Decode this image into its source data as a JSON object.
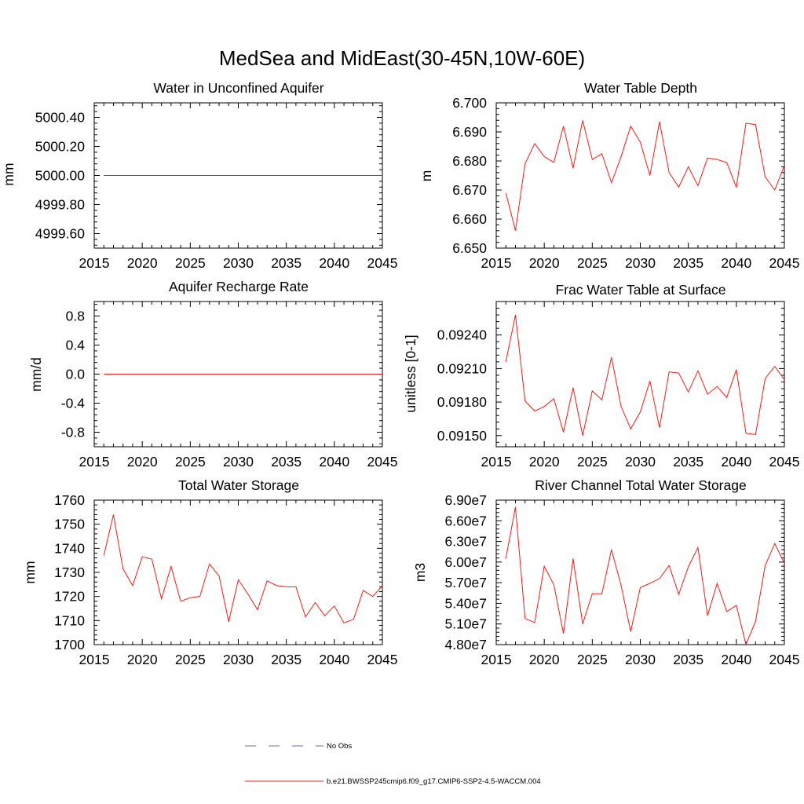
{
  "figure": {
    "title": "MedSea and MidEast(30-45N,10W-60E)",
    "legend": [
      {
        "label": "No Obs",
        "color": "#6a6ab0",
        "style": "dashed"
      },
      {
        "label": "b.e21.BWSSP245cmip6.f09_g17.CMIP6-SSP2-4.5-WACCM.004",
        "color": "#e8201a",
        "style": "solid"
      }
    ]
  },
  "chart_data": [
    {
      "id": "unconfined",
      "type": "line",
      "title": "Water in Unconfined Aquifer",
      "ylabel": "mm",
      "xlabel": "",
      "xlim": [
        2015,
        2045
      ],
      "ylim": [
        4999.5,
        5000.5
      ],
      "xticks": [
        2015,
        2020,
        2025,
        2030,
        2035,
        2040,
        2045
      ],
      "yticks": [
        4999.6,
        4999.8,
        5000.0,
        5000.2,
        5000.4
      ],
      "yticklabels": [
        "4999.60",
        "4999.80",
        "5000.00",
        "5000.20",
        "5000.40"
      ],
      "x": [
        2016,
        2017,
        2018,
        2019,
        2020,
        2021,
        2022,
        2023,
        2024,
        2025,
        2026,
        2027,
        2028,
        2029,
        2030,
        2031,
        2032,
        2033,
        2034,
        2035,
        2036,
        2037,
        2038,
        2039,
        2040,
        2041,
        2042,
        2043,
        2044,
        2045
      ],
      "series": [
        {
          "name": "b.e21.BWSSP245cmip6.f09_g17.CMIP6-SSP2-4.5-WACCM.004",
          "values": [
            5000.0,
            5000.0,
            5000.0,
            5000.0,
            5000.0,
            5000.0,
            5000.0,
            5000.0,
            5000.0,
            5000.0,
            5000.0,
            5000.0,
            5000.0,
            5000.0,
            5000.0,
            5000.0,
            5000.0,
            5000.0,
            5000.0,
            5000.0,
            5000.0,
            5000.0,
            5000.0,
            5000.0,
            5000.0,
            5000.0,
            5000.0,
            5000.0,
            5000.0,
            5000.0
          ]
        }
      ]
    },
    {
      "id": "wtd",
      "type": "line",
      "title": "Water Table Depth",
      "ylabel": "m",
      "xlabel": "",
      "xlim": [
        2015,
        2045
      ],
      "ylim": [
        6.65,
        6.7
      ],
      "xticks": [
        2015,
        2020,
        2025,
        2030,
        2035,
        2040,
        2045
      ],
      "yticks": [
        6.65,
        6.66,
        6.67,
        6.68,
        6.69,
        6.7
      ],
      "yticklabels": [
        "6.650",
        "6.660",
        "6.670",
        "6.680",
        "6.690",
        "6.700"
      ],
      "x": [
        2016,
        2017,
        2018,
        2019,
        2020,
        2021,
        2022,
        2023,
        2024,
        2025,
        2026,
        2027,
        2028,
        2029,
        2030,
        2031,
        2032,
        2033,
        2034,
        2035,
        2036,
        2037,
        2038,
        2039,
        2040,
        2041,
        2042,
        2043,
        2044,
        2045
      ],
      "series": [
        {
          "name": "b.e21.BWSSP245cmip6.f09_g17.CMIP6-SSP2-4.5-WACCM.004",
          "values": [
            6.669,
            6.656,
            6.679,
            6.686,
            6.6815,
            6.6795,
            6.692,
            6.6775,
            6.694,
            6.6805,
            6.6825,
            6.6725,
            6.6815,
            6.692,
            6.6865,
            6.675,
            6.6935,
            6.676,
            6.671,
            6.678,
            6.6715,
            6.681,
            6.6805,
            6.6795,
            6.671,
            6.693,
            6.6925,
            6.6745,
            6.67,
            6.6785
          ]
        }
      ]
    },
    {
      "id": "recharge",
      "type": "line",
      "title": "Aquifer Recharge Rate",
      "ylabel": "mm/d",
      "xlabel": "",
      "xlim": [
        2015,
        2045
      ],
      "ylim": [
        -1.0,
        1.0
      ],
      "xticks": [
        2015,
        2020,
        2025,
        2030,
        2035,
        2040,
        2045
      ],
      "yticks": [
        -0.8,
        -0.4,
        0.0,
        0.4,
        0.8
      ],
      "yticklabels": [
        "-0.8",
        "-0.4",
        "0.0",
        "0.4",
        "0.8"
      ],
      "x": [
        2016,
        2017,
        2018,
        2019,
        2020,
        2021,
        2022,
        2023,
        2024,
        2025,
        2026,
        2027,
        2028,
        2029,
        2030,
        2031,
        2032,
        2033,
        2034,
        2035,
        2036,
        2037,
        2038,
        2039,
        2040,
        2041,
        2042,
        2043,
        2044,
        2045
      ],
      "series": [
        {
          "name": "b.e21.BWSSP245cmip6.f09_g17.CMIP6-SSP2-4.5-WACCM.004",
          "values": [
            0.0,
            0.0,
            0.0,
            0.0,
            0.0,
            0.0,
            0.0,
            0.0,
            0.0,
            0.0,
            0.0,
            0.0,
            0.0,
            0.0,
            0.0,
            0.0,
            0.0,
            0.0,
            0.0,
            0.0,
            0.0,
            0.0,
            0.0,
            0.0,
            0.0,
            0.0,
            0.0,
            0.0,
            0.0,
            0.0
          ]
        }
      ]
    },
    {
      "id": "frac",
      "type": "line",
      "title": "Frac Water Table at Surface",
      "ylabel": "unitless [0-1]",
      "xlabel": "",
      "xlim": [
        2015,
        2045
      ],
      "ylim": [
        0.0914,
        0.0927
      ],
      "xticks": [
        2015,
        2020,
        2025,
        2030,
        2035,
        2040,
        2045
      ],
      "yticks": [
        0.0915,
        0.0918,
        0.0921,
        0.0924
      ],
      "yticklabels": [
        "0.09150",
        "0.09180",
        "0.09210",
        "0.09240"
      ],
      "x": [
        2016,
        2017,
        2018,
        2019,
        2020,
        2021,
        2022,
        2023,
        2024,
        2025,
        2026,
        2027,
        2028,
        2029,
        2030,
        2031,
        2032,
        2033,
        2034,
        2035,
        2036,
        2037,
        2038,
        2039,
        2040,
        2041,
        2042,
        2043,
        2044,
        2045
      ],
      "series": [
        {
          "name": "b.e21.BWSSP245cmip6.f09_g17.CMIP6-SSP2-4.5-WACCM.004",
          "values": [
            0.09216,
            0.09258,
            0.09181,
            0.09172,
            0.09176,
            0.09183,
            0.09153,
            0.09193,
            0.0915,
            0.0919,
            0.09182,
            0.0922,
            0.09176,
            0.09156,
            0.09171,
            0.09199,
            0.09157,
            0.09207,
            0.09206,
            0.09189,
            0.09208,
            0.09187,
            0.09194,
            0.09184,
            0.09209,
            0.09152,
            0.09151,
            0.09201,
            0.09212,
            0.092
          ]
        }
      ]
    },
    {
      "id": "tws",
      "type": "line",
      "title": "Total Water Storage",
      "ylabel": "mm",
      "xlabel": "",
      "xlim": [
        2015,
        2045
      ],
      "ylim": [
        1700,
        1760
      ],
      "xticks": [
        2015,
        2020,
        2025,
        2030,
        2035,
        2040,
        2045
      ],
      "yticks": [
        1700,
        1710,
        1720,
        1730,
        1740,
        1750,
        1760
      ],
      "yticklabels": [
        "1700",
        "1710",
        "1720",
        "1730",
        "1740",
        "1750",
        "1760"
      ],
      "x": [
        2016,
        2017,
        2018,
        2019,
        2020,
        2021,
        2022,
        2023,
        2024,
        2025,
        2026,
        2027,
        2028,
        2029,
        2030,
        2031,
        2032,
        2033,
        2034,
        2035,
        2036,
        2037,
        2038,
        2039,
        2040,
        2041,
        2042,
        2043,
        2044,
        2045
      ],
      "series": [
        {
          "name": "b.e21.BWSSP245cmip6.f09_g17.CMIP6-SSP2-4.5-WACCM.004",
          "values": [
            1737.0,
            1754.0,
            1731.5,
            1724.5,
            1736.5,
            1735.5,
            1719.0,
            1732.5,
            1718.0,
            1719.5,
            1720.0,
            1733.5,
            1728.5,
            1709.5,
            1727.0,
            1721.0,
            1714.5,
            1726.5,
            1724.5,
            1724.0,
            1724.0,
            1711.5,
            1717.5,
            1712.0,
            1716.0,
            1709.0,
            1710.5,
            1722.5,
            1720.0,
            1724.5
          ]
        }
      ]
    },
    {
      "id": "river",
      "type": "line",
      "title": "River Channel Total Water Storage",
      "ylabel": "m3",
      "xlabel": "",
      "xlim": [
        2015,
        2045
      ],
      "ylim": [
        48000000,
        69000000
      ],
      "xticks": [
        2015,
        2020,
        2025,
        2030,
        2035,
        2040,
        2045
      ],
      "yticks": [
        48000000,
        51000000,
        54000000,
        57000000,
        60000000,
        63000000,
        66000000,
        69000000
      ],
      "yticklabels": [
        "4.80e7",
        "5.10e7",
        "5.40e7",
        "5.70e7",
        "6.00e7",
        "6.30e7",
        "6.60e7",
        "6.90e7"
      ],
      "x": [
        2016,
        2017,
        2018,
        2019,
        2020,
        2021,
        2022,
        2023,
        2024,
        2025,
        2026,
        2027,
        2028,
        2029,
        2030,
        2031,
        2032,
        2033,
        2034,
        2035,
        2036,
        2037,
        2038,
        2039,
        2040,
        2041,
        2042,
        2043,
        2044,
        2045
      ],
      "series": [
        {
          "name": "b.e21.BWSSP245cmip6.f09_g17.CMIP6-SSP2-4.5-WACCM.004",
          "values": [
            60500000,
            68000000,
            51800000,
            51200000,
            59400000,
            56700000,
            49600000,
            60500000,
            51000000,
            55400000,
            55400000,
            61800000,
            56600000,
            49900000,
            56300000,
            56900000,
            57600000,
            59500000,
            55300000,
            59300000,
            62100000,
            52200000,
            56900000,
            52800000,
            53700000,
            48000000,
            51400000,
            59500000,
            62700000,
            59800000
          ]
        }
      ]
    }
  ]
}
